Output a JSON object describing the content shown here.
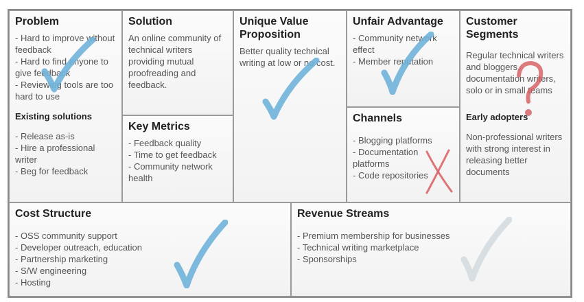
{
  "canvas": {
    "problem": {
      "title": "Problem",
      "items": [
        "- Hard to improve without feedback",
        "- Hard to find anyone to give feedback",
        "- Reviewing tools are too hard to use"
      ],
      "existing_title": "Existing solutions",
      "existing_items": [
        "- Release as-is",
        "- Hire a professional writer",
        "- Beg for feedback"
      ]
    },
    "solution": {
      "title": "Solution",
      "text": "An online community of technical writers providing mutual proofreading and feedback."
    },
    "key_metrics": {
      "title": "Key Metrics",
      "items": [
        "- Feedback quality",
        "- Time to get feedback",
        "- Community network health"
      ]
    },
    "uvp": {
      "title": "Unique Value Proposition",
      "text": "Better quality technical writing at low or no cost."
    },
    "unfair_advantage": {
      "title": "Unfair Advantage",
      "items": [
        "- Community network effect",
        "- Member reputation"
      ]
    },
    "channels": {
      "title": "Channels",
      "items": [
        "- Blogging platforms",
        "- Documentation platforms",
        "- Code repositories"
      ]
    },
    "customer_segments": {
      "title": "Customer Segments",
      "text": "Regular technical writers and bloggers, documentation writers, solo or in small teams",
      "early_title": "Early adopters",
      "early_text": "Non-professional writers with strong interest in releasing better documents"
    },
    "cost_structure": {
      "title": "Cost Structure",
      "items": [
        "- OSS community support",
        "- Developer outreach, education",
        "- Partnership marketing",
        "- S/W engineering",
        "- Hosting"
      ]
    },
    "revenue_streams": {
      "title": "Revenue Streams",
      "items": [
        "- Premium membership for businesses",
        "- Technical writing marketplace",
        "- Sponsorships"
      ]
    }
  },
  "marks": {
    "problem": "check",
    "uvp": "check",
    "unfair_advantage": "check",
    "channels": "cross",
    "customer_segments": "question",
    "cost_structure": "check",
    "revenue_streams": "check-faint"
  },
  "colors": {
    "check": "#6fb3d9",
    "cross": "#d9666a",
    "question": "#d45a5e",
    "check_faint": "#d5dde0"
  }
}
